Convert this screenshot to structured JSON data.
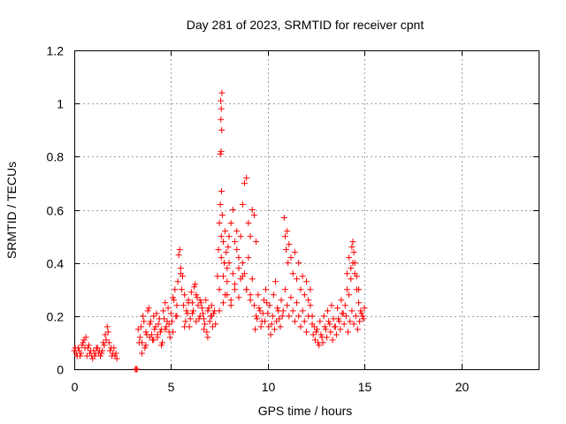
{
  "chart_data": {
    "type": "scatter",
    "title": "Day 281 of 2023, SRMTID for receiver cpnt",
    "xlabel": "GPS time / hours",
    "ylabel": "SRMTID / TECUs",
    "xlim": [
      0,
      24
    ],
    "ylim": [
      0,
      1.2
    ],
    "xticks": [
      0,
      5,
      10,
      15,
      20
    ],
    "xtick_labels": [
      "0",
      "5",
      "10",
      "15",
      "20"
    ],
    "yticks": [
      0,
      0.2,
      0.4,
      0.6,
      0.8,
      1.0,
      1.2
    ],
    "ytick_labels": [
      "0",
      "0.2",
      "0.4",
      "0.6",
      "0.8",
      "1",
      "1.2"
    ],
    "grid": true,
    "marker": "+",
    "color": "#ff0000",
    "series": [
      {
        "name": "SRMTID",
        "x": [
          0.0,
          0.1,
          0.2,
          0.3,
          0.4,
          0.5,
          0.6,
          0.7,
          0.8,
          0.9,
          1.0,
          1.1,
          1.2,
          1.3,
          1.4,
          1.5,
          1.6,
          1.7,
          1.8,
          1.9,
          2.0,
          2.1,
          2.2,
          0.05,
          0.15,
          0.25,
          0.35,
          0.45,
          0.55,
          0.65,
          0.75,
          0.85,
          0.95,
          1.05,
          1.15,
          1.25,
          1.35,
          1.45,
          1.55,
          1.65,
          1.75,
          1.85,
          1.95,
          2.05,
          2.15,
          3.15,
          3.2,
          3.25,
          3.3,
          3.4,
          3.5,
          3.6,
          3.7,
          3.8,
          3.9,
          4.0,
          4.1,
          4.2,
          4.3,
          4.4,
          4.5,
          4.6,
          4.7,
          4.8,
          4.9,
          5.0,
          5.1,
          5.2,
          5.3,
          5.4,
          5.5,
          5.6,
          5.7,
          5.8,
          5.9,
          6.0,
          6.1,
          6.2,
          6.3,
          6.4,
          6.5,
          6.6,
          6.7,
          6.8,
          6.9,
          7.0,
          7.1,
          7.2,
          7.3,
          3.35,
          3.45,
          3.55,
          3.65,
          3.75,
          3.85,
          3.95,
          4.05,
          4.15,
          4.25,
          4.35,
          4.45,
          4.55,
          4.65,
          4.75,
          4.85,
          4.95,
          5.05,
          5.15,
          5.25,
          5.35,
          5.45,
          5.55,
          5.65,
          5.75,
          5.85,
          5.95,
          6.05,
          6.15,
          6.25,
          6.35,
          6.45,
          6.55,
          6.65,
          6.75,
          6.85,
          6.95,
          7.05,
          7.15,
          7.25,
          3.5,
          3.7,
          3.9,
          4.1,
          4.3,
          4.5,
          4.7,
          4.9,
          5.1,
          5.3,
          5.5,
          5.7,
          5.9,
          6.1,
          6.3,
          6.5,
          6.7,
          6.9,
          7.1,
          7.4,
          7.45,
          7.5,
          7.55,
          7.6,
          7.65,
          7.7,
          7.75,
          7.8,
          7.85,
          7.9,
          7.95,
          8.0,
          8.1,
          8.2,
          8.3,
          8.4,
          8.5,
          8.6,
          8.7,
          8.8,
          8.9,
          9.0,
          9.1,
          9.2,
          9.3,
          9.4,
          7.5,
          7.6,
          7.7,
          7.8,
          7.9,
          8.0,
          8.1,
          8.2,
          8.3,
          8.4,
          8.5,
          8.6,
          8.7,
          8.8,
          8.9,
          9.0,
          9.1,
          9.2,
          7.55,
          7.62,
          7.58,
          7.6,
          7.57,
          7.63,
          7.59,
          7.61,
          7.5,
          7.7,
          7.9,
          8.1,
          8.3,
          8.5,
          8.7,
          8.9,
          9.1,
          9.3,
          9.4,
          9.5,
          9.6,
          9.7,
          9.8,
          9.9,
          10.0,
          10.1,
          10.2,
          10.3,
          10.4,
          10.5,
          10.6,
          10.7,
          10.8,
          9.35,
          9.45,
          9.55,
          9.65,
          9.75,
          9.85,
          9.95,
          10.05,
          10.15,
          10.25,
          10.35,
          10.45,
          10.55,
          10.65,
          10.75,
          10.85,
          10.9,
          10.95,
          11.0,
          11.05,
          11.1,
          11.2,
          11.3,
          11.4,
          11.5,
          11.6,
          11.7,
          11.8,
          11.9,
          12.0,
          12.1,
          12.2,
          10.9,
          11.0,
          11.1,
          11.2,
          11.3,
          11.4,
          11.5,
          11.6,
          11.7,
          11.8,
          11.9,
          12.0,
          12.1,
          12.2,
          12.3,
          12.3,
          12.4,
          12.5,
          12.6,
          12.7,
          12.8,
          12.9,
          13.0,
          13.1,
          13.2,
          13.3,
          13.4,
          13.5,
          13.6,
          13.7,
          13.8,
          13.9,
          14.0,
          14.1,
          14.2,
          14.3,
          14.4,
          14.5,
          14.6,
          14.7,
          14.8,
          14.9,
          15.0,
          12.35,
          12.45,
          12.55,
          12.65,
          12.75,
          12.85,
          12.95,
          13.05,
          13.15,
          13.25,
          13.35,
          13.45,
          13.55,
          13.65,
          13.75,
          13.85,
          13.95,
          14.05,
          14.15,
          14.25,
          14.35,
          14.45,
          14.55,
          14.65,
          14.75,
          14.85,
          14.95,
          14.1,
          14.2,
          14.3,
          14.35,
          14.4,
          14.45,
          14.5,
          14.6,
          14.7
        ],
        "y": [
          0.07,
          0.06,
          0.08,
          0.05,
          0.09,
          0.11,
          0.12,
          0.08,
          0.06,
          0.05,
          0.07,
          0.06,
          0.08,
          0.07,
          0.06,
          0.1,
          0.13,
          0.16,
          0.1,
          0.08,
          0.06,
          0.05,
          0.04,
          0.08,
          0.05,
          0.07,
          0.06,
          0.1,
          0.08,
          0.05,
          0.09,
          0.07,
          0.04,
          0.05,
          0.08,
          0.06,
          0.05,
          0.07,
          0.09,
          0.11,
          0.14,
          0.07,
          0.05,
          0.08,
          0.06,
          0.0,
          0.0,
          0.0,
          0.15,
          0.12,
          0.1,
          0.18,
          0.14,
          0.22,
          0.17,
          0.13,
          0.2,
          0.16,
          0.12,
          0.19,
          0.15,
          0.22,
          0.25,
          0.18,
          0.14,
          0.21,
          0.27,
          0.3,
          0.24,
          0.43,
          0.38,
          0.35,
          0.28,
          0.22,
          0.26,
          0.19,
          0.25,
          0.31,
          0.28,
          0.24,
          0.2,
          0.23,
          0.19,
          0.26,
          0.22,
          0.18,
          0.24,
          0.21,
          0.17,
          0.1,
          0.16,
          0.2,
          0.08,
          0.13,
          0.23,
          0.18,
          0.11,
          0.15,
          0.21,
          0.17,
          0.14,
          0.1,
          0.19,
          0.16,
          0.23,
          0.12,
          0.18,
          0.26,
          0.2,
          0.33,
          0.45,
          0.3,
          0.24,
          0.18,
          0.21,
          0.16,
          0.29,
          0.22,
          0.32,
          0.27,
          0.19,
          0.25,
          0.21,
          0.17,
          0.14,
          0.23,
          0.2,
          0.16,
          0.22,
          0.06,
          0.09,
          0.12,
          0.11,
          0.13,
          0.09,
          0.15,
          0.17,
          0.14,
          0.2,
          0.36,
          0.16,
          0.25,
          0.21,
          0.18,
          0.26,
          0.15,
          0.12,
          0.2,
          0.35,
          0.45,
          0.55,
          0.62,
          0.5,
          0.58,
          0.48,
          0.4,
          0.52,
          0.44,
          0.38,
          0.46,
          0.5,
          0.55,
          0.6,
          0.48,
          0.52,
          0.42,
          0.5,
          0.62,
          0.7,
          0.72,
          0.55,
          0.5,
          0.6,
          0.58,
          0.48,
          0.3,
          0.42,
          0.35,
          0.28,
          0.33,
          0.4,
          0.26,
          0.36,
          0.3,
          0.45,
          0.38,
          0.34,
          0.4,
          0.36,
          0.3,
          0.42,
          0.28,
          0.34,
          0.81,
          0.9,
          0.94,
          0.98,
          1.01,
          1.04,
          0.82,
          0.67,
          0.22,
          0.25,
          0.28,
          0.24,
          0.32,
          0.27,
          0.35,
          0.3,
          0.26,
          0.24,
          0.2,
          0.28,
          0.22,
          0.18,
          0.26,
          0.3,
          0.21,
          0.24,
          0.17,
          0.28,
          0.33,
          0.23,
          0.19,
          0.26,
          0.22,
          0.15,
          0.19,
          0.23,
          0.16,
          0.21,
          0.18,
          0.25,
          0.16,
          0.13,
          0.2,
          0.15,
          0.18,
          0.22,
          0.16,
          0.2,
          0.57,
          0.5,
          0.45,
          0.52,
          0.4,
          0.47,
          0.42,
          0.36,
          0.44,
          0.34,
          0.4,
          0.3,
          0.35,
          0.28,
          0.33,
          0.26,
          0.3,
          0.3,
          0.24,
          0.2,
          0.27,
          0.22,
          0.18,
          0.25,
          0.2,
          0.16,
          0.22,
          0.18,
          0.14,
          0.2,
          0.24,
          0.17,
          0.2,
          0.16,
          0.14,
          0.1,
          0.18,
          0.12,
          0.2,
          0.15,
          0.22,
          0.17,
          0.24,
          0.19,
          0.16,
          0.23,
          0.18,
          0.26,
          0.21,
          0.24,
          0.3,
          0.28,
          0.34,
          0.4,
          0.36,
          0.3,
          0.25,
          0.22,
          0.2,
          0.23,
          0.13,
          0.11,
          0.15,
          0.09,
          0.13,
          0.1,
          0.16,
          0.12,
          0.18,
          0.14,
          0.11,
          0.16,
          0.13,
          0.19,
          0.15,
          0.21,
          0.17,
          0.2,
          0.14,
          0.18,
          0.22,
          0.17,
          0.2,
          0.15,
          0.18,
          0.21,
          0.19,
          0.36,
          0.42,
          0.38,
          0.46,
          0.48,
          0.44,
          0.4,
          0.35,
          0.3
        ]
      }
    ]
  }
}
